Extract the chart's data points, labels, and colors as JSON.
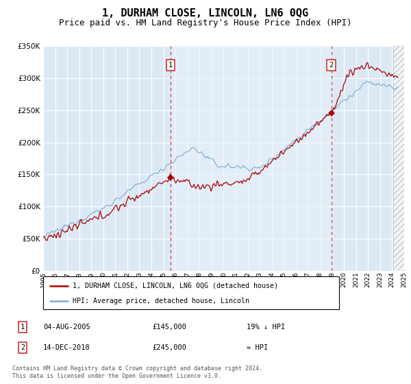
{
  "title": "1, DURHAM CLOSE, LINCOLN, LN6 0QG",
  "subtitle": "Price paid vs. HM Land Registry's House Price Index (HPI)",
  "title_fontsize": 11,
  "subtitle_fontsize": 9,
  "bg_color": "#dce9f5",
  "grid_color": "#ffffff",
  "hpi_color": "#7aaad0",
  "price_color": "#aa0000",
  "marker1_year": 2005.58,
  "marker1_value": 145000,
  "marker2_year": 2018.95,
  "marker2_value": 245000,
  "xmin": 1995,
  "xmax": 2025,
  "ymin": 0,
  "ymax": 350000,
  "yticks": [
    0,
    50000,
    100000,
    150000,
    200000,
    250000,
    300000,
    350000
  ],
  "ytick_labels": [
    "£0",
    "£50K",
    "£100K",
    "£150K",
    "£200K",
    "£250K",
    "£300K",
    "£350K"
  ],
  "xticks": [
    1995,
    1996,
    1997,
    1998,
    1999,
    2000,
    2001,
    2002,
    2003,
    2004,
    2005,
    2006,
    2007,
    2008,
    2009,
    2010,
    2011,
    2012,
    2013,
    2014,
    2015,
    2016,
    2017,
    2018,
    2019,
    2020,
    2021,
    2022,
    2023,
    2024,
    2025
  ],
  "legend_label1": "1, DURHAM CLOSE, LINCOLN, LN6 0QG (detached house)",
  "legend_label2": "HPI: Average price, detached house, Lincoln",
  "note1_num": "1",
  "note1_date": "04-AUG-2005",
  "note1_price": "£145,000",
  "note1_hpi": "19% ↓ HPI",
  "note2_num": "2",
  "note2_date": "14-DEC-2018",
  "note2_price": "£245,000",
  "note2_hpi": "≈ HPI",
  "footer": "Contains HM Land Registry data © Crown copyright and database right 2024.\nThis data is licensed under the Open Government Licence v3.0.",
  "hatch_start": 2024.08,
  "hatch_end": 2025.5
}
